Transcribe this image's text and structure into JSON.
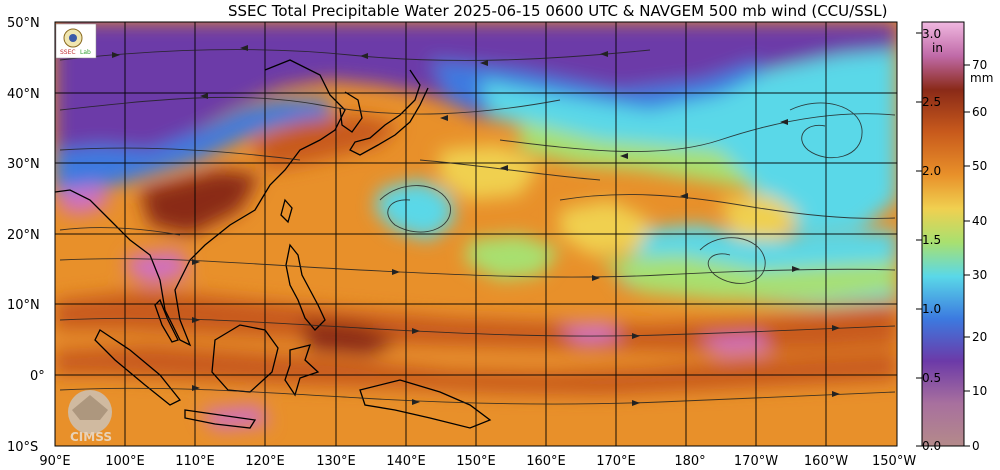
{
  "title": "SSEC Total Precipitable Water  2025-06-15 0600 UTC & NAVGEM 500 mb wind (CCU/SSL)",
  "logos": {
    "top_left": "SSEC logo",
    "bottom_left": "CIMSS"
  },
  "map": {
    "lon_labels": [
      "90°E",
      "100°E",
      "110°E",
      "120°E",
      "130°E",
      "140°E",
      "150°E",
      "160°E",
      "170°E",
      "180°",
      "170°W",
      "160°W",
      "150°W"
    ],
    "lat_labels": [
      "50°N",
      "40°N",
      "30°N",
      "20°N",
      "10°N",
      "0°",
      "10°S"
    ],
    "gridlines": true,
    "colors": {
      "very_dry": "#b0748a",
      "dry": "#6c3aa8",
      "blue": "#3c7ae0",
      "cyan": "#5ad8e8",
      "green": "#a8e070",
      "yellow": "#f0d050",
      "orange": "#e8902a",
      "dark_orange": "#c85a1c",
      "brown": "#8a2a18",
      "pink": "#d070c0"
    }
  },
  "colorbar": {
    "in_unit": "in",
    "mm_unit": "mm",
    "in_ticks": [
      "3.0",
      "2.5",
      "2.0",
      "1.5",
      "1.0",
      "0.5",
      "0.0"
    ],
    "mm_ticks": [
      "70",
      "60",
      "50",
      "40",
      "30",
      "20",
      "10",
      "0"
    ]
  }
}
